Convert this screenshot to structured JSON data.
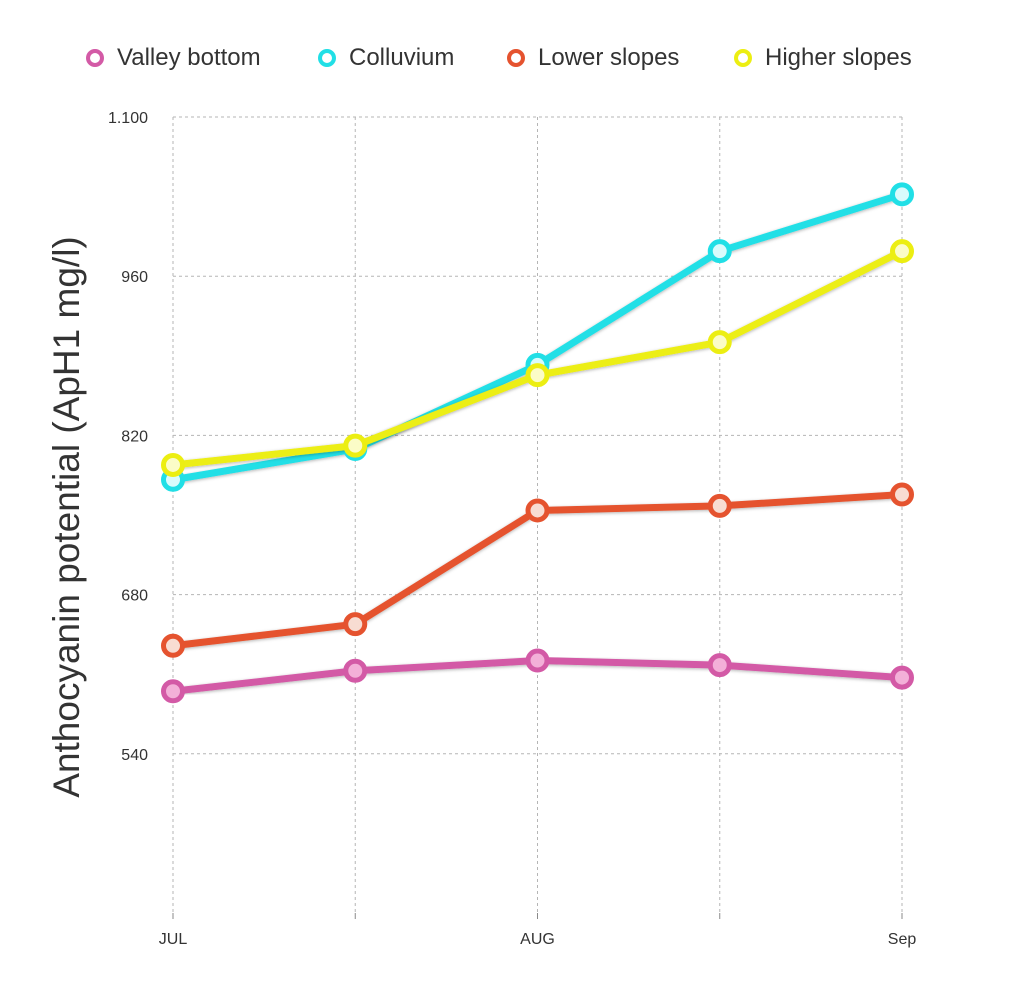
{
  "chart_data": {
    "type": "line",
    "title": "",
    "xlabel": "",
    "ylabel": "Anthocyanin potential (ApH1 mg/l)",
    "x_positions": 5,
    "x_ticks": [
      {
        "index": 0,
        "label": "JUL"
      },
      {
        "index": 2,
        "label": "AUG"
      },
      {
        "index": 4,
        "label": "Sep"
      }
    ],
    "y_ticks": [
      {
        "value": 540,
        "label": "540"
      },
      {
        "value": 680,
        "label": "680"
      },
      {
        "value": 820,
        "label": "820"
      },
      {
        "value": 960,
        "label": "960"
      },
      {
        "value": 1100,
        "label": "1.100"
      }
    ],
    "ylim": [
      400,
      1100
    ],
    "grid": true,
    "legend_position": "top",
    "series": [
      {
        "name": "Valley bottom",
        "color": "#d35aa6",
        "marker_fill": "#f3b0d8",
        "values": [
          595,
          613,
          622,
          618,
          607
        ]
      },
      {
        "name": "Colluvium",
        "color": "#21dfe6",
        "marker_fill": "#d9fbfc",
        "values": [
          781,
          808,
          882,
          982,
          1032
        ]
      },
      {
        "name": "Lower slopes",
        "color": "#e5532f",
        "marker_fill": "#f8dcd2",
        "values": [
          635,
          654,
          754,
          758,
          768
        ]
      },
      {
        "name": "Higher slopes",
        "color": "#ecee12",
        "marker_fill": "#fbfcc7",
        "values": [
          794,
          811,
          873,
          902,
          982
        ]
      }
    ]
  }
}
